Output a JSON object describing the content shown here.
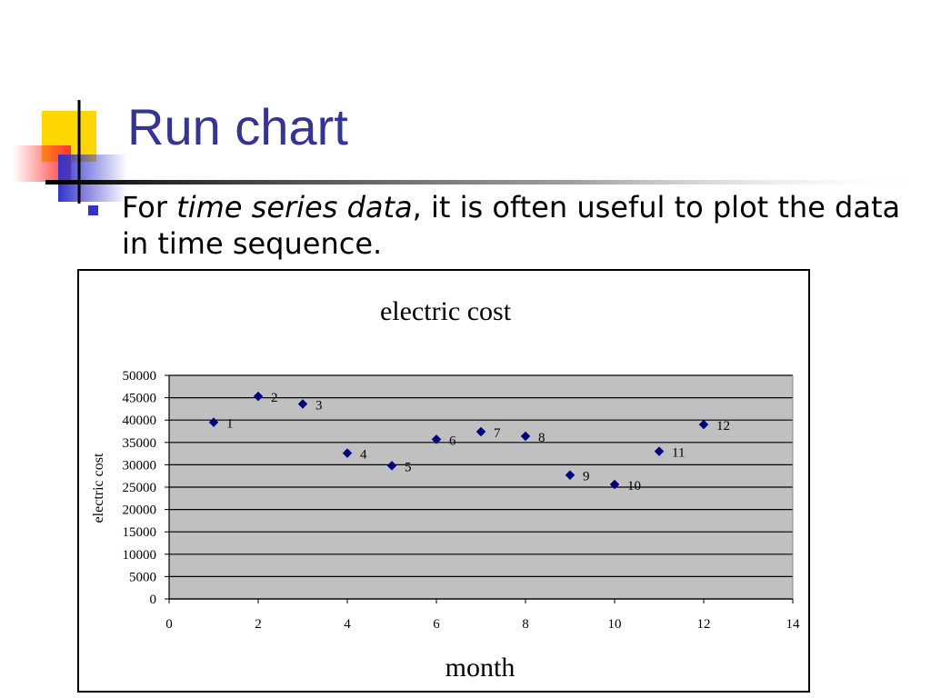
{
  "slide": {
    "title": "Run chart",
    "bullet": {
      "before": "For ",
      "emphasis": "time series data",
      "after": ", it is often useful to plot the data in time sequence."
    }
  },
  "colors": {
    "title": "#333399",
    "bullet": "#3333cc",
    "plot_area": "#c0c0c0",
    "marker": "#000080",
    "deco_yellow": "#ffd700",
    "deco_red": "#ff3333",
    "deco_blue": "#3333cc"
  },
  "chart_data": {
    "type": "scatter",
    "title": "electric cost",
    "xlabel": "month",
    "ylabel": "electric cost",
    "xlim": [
      0,
      14
    ],
    "ylim": [
      0,
      50000
    ],
    "x_ticks": [
      0,
      2,
      4,
      6,
      8,
      10,
      12,
      14
    ],
    "y_ticks": [
      0,
      5000,
      10000,
      15000,
      20000,
      25000,
      30000,
      35000,
      40000,
      45000,
      50000
    ],
    "grid": true,
    "legend": "none",
    "marker": "diamond",
    "points": [
      {
        "x": 1,
        "y": 39500,
        "label": "1"
      },
      {
        "x": 2,
        "y": 45300,
        "label": "2"
      },
      {
        "x": 3,
        "y": 43600,
        "label": "3"
      },
      {
        "x": 4,
        "y": 32600,
        "label": "4"
      },
      {
        "x": 5,
        "y": 29800,
        "label": "5"
      },
      {
        "x": 6,
        "y": 35700,
        "label": "6"
      },
      {
        "x": 7,
        "y": 37400,
        "label": "7"
      },
      {
        "x": 8,
        "y": 36400,
        "label": "8"
      },
      {
        "x": 9,
        "y": 27700,
        "label": "9"
      },
      {
        "x": 10,
        "y": 25600,
        "label": "10"
      },
      {
        "x": 11,
        "y": 33000,
        "label": "11"
      },
      {
        "x": 12,
        "y": 39000,
        "label": "12"
      }
    ]
  }
}
